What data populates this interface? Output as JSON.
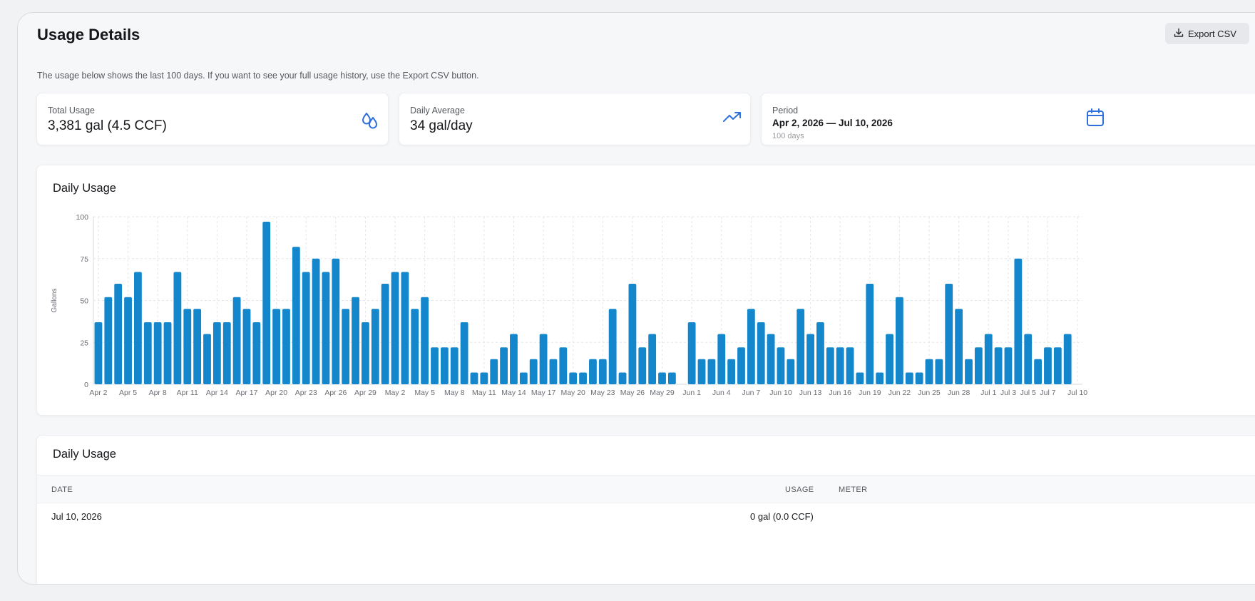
{
  "page": {
    "title": "Usage Details",
    "export_label": "Export CSV",
    "subtitle": "The usage below shows the last 100 days. If you want to see your full usage history, use the Export CSV button."
  },
  "stats": {
    "total": {
      "label": "Total Usage",
      "value": "3,381 gal (4.5 CCF)",
      "icon": "water-drops-icon"
    },
    "average": {
      "label": "Daily Average",
      "value": "34 gal/day",
      "icon": "trending-up-icon"
    },
    "period": {
      "label": "Period",
      "value": "Apr 2, 2026 — Jul 10, 2026",
      "sub": "100 days",
      "icon": "calendar-icon"
    }
  },
  "colors": {
    "accent": "#2f6fdb",
    "bar": "#1487cc",
    "grid": "#e4e6ea"
  },
  "chart_data": {
    "type": "bar",
    "title": "Daily Usage",
    "xlabel": "",
    "ylabel": "Gallons",
    "ylim": [
      0,
      100
    ],
    "yticks": [
      0,
      25,
      50,
      75,
      100
    ],
    "grid": true,
    "tick_labels": [
      "Apr 2",
      "Apr 5",
      "Apr 8",
      "Apr 11",
      "Apr 14",
      "Apr 17",
      "Apr 20",
      "Apr 23",
      "Apr 26",
      "Apr 29",
      "May 2",
      "May 5",
      "May 8",
      "May 11",
      "May 14",
      "May 17",
      "May 20",
      "May 23",
      "May 26",
      "May 29",
      "Jun 1",
      "Jun 4",
      "Jun 7",
      "Jun 10",
      "Jun 13",
      "Jun 16",
      "Jun 19",
      "Jun 22",
      "Jun 25",
      "Jun 28",
      "Jul 1",
      "Jul 3",
      "Jul 5",
      "Jul 7",
      "Jul 10"
    ],
    "categories": [
      "Apr 2",
      "Apr 3",
      "Apr 4",
      "Apr 5",
      "Apr 6",
      "Apr 7",
      "Apr 8",
      "Apr 9",
      "Apr 10",
      "Apr 11",
      "Apr 12",
      "Apr 13",
      "Apr 14",
      "Apr 15",
      "Apr 16",
      "Apr 17",
      "Apr 18",
      "Apr 19",
      "Apr 20",
      "Apr 21",
      "Apr 22",
      "Apr 23",
      "Apr 24",
      "Apr 25",
      "Apr 26",
      "Apr 27",
      "Apr 28",
      "Apr 29",
      "Apr 30",
      "May 1",
      "May 2",
      "May 3",
      "May 4",
      "May 5",
      "May 6",
      "May 7",
      "May 8",
      "May 9",
      "May 10",
      "May 11",
      "May 12",
      "May 13",
      "May 14",
      "May 15",
      "May 16",
      "May 17",
      "May 18",
      "May 19",
      "May 20",
      "May 21",
      "May 22",
      "May 23",
      "May 24",
      "May 25",
      "May 26",
      "May 27",
      "May 28",
      "May 29",
      "May 30",
      "May 31",
      "Jun 1",
      "Jun 2",
      "Jun 3",
      "Jun 4",
      "Jun 5",
      "Jun 6",
      "Jun 7",
      "Jun 8",
      "Jun 9",
      "Jun 10",
      "Jun 11",
      "Jun 12",
      "Jun 13",
      "Jun 14",
      "Jun 15",
      "Jun 16",
      "Jun 17",
      "Jun 18",
      "Jun 19",
      "Jun 20",
      "Jun 21",
      "Jun 22",
      "Jun 23",
      "Jun 24",
      "Jun 25",
      "Jun 26",
      "Jun 27",
      "Jun 28",
      "Jun 29",
      "Jun 30",
      "Jul 1",
      "Jul 2",
      "Jul 3",
      "Jul 4",
      "Jul 5",
      "Jul 6",
      "Jul 7",
      "Jul 8",
      "Jul 9",
      "Jul 10"
    ],
    "values": [
      37,
      52,
      60,
      52,
      67,
      37,
      37,
      37,
      67,
      45,
      45,
      30,
      37,
      37,
      52,
      45,
      37,
      97,
      45,
      45,
      82,
      67,
      75,
      67,
      75,
      45,
      52,
      37,
      45,
      60,
      67,
      67,
      45,
      52,
      22,
      22,
      22,
      37,
      7,
      7,
      15,
      22,
      30,
      7,
      15,
      30,
      15,
      22,
      7,
      7,
      15,
      15,
      45,
      7,
      60,
      22,
      30,
      7,
      7,
      0,
      37,
      15,
      15,
      30,
      15,
      22,
      45,
      37,
      30,
      22,
      15,
      45,
      30,
      37,
      22,
      22,
      22,
      7,
      60,
      7,
      30,
      52,
      7,
      7,
      15,
      15,
      60,
      45,
      15,
      22,
      30,
      22,
      22,
      75,
      30,
      15,
      22,
      22,
      30,
      0
    ]
  },
  "table": {
    "title": "Daily Usage",
    "columns": {
      "date": "DATE",
      "usage": "USAGE",
      "meter": "METER"
    },
    "rows": [
      {
        "date": "Jul 10, 2026",
        "usage": "0 gal (0.0 CCF)",
        "meter": ""
      }
    ]
  }
}
